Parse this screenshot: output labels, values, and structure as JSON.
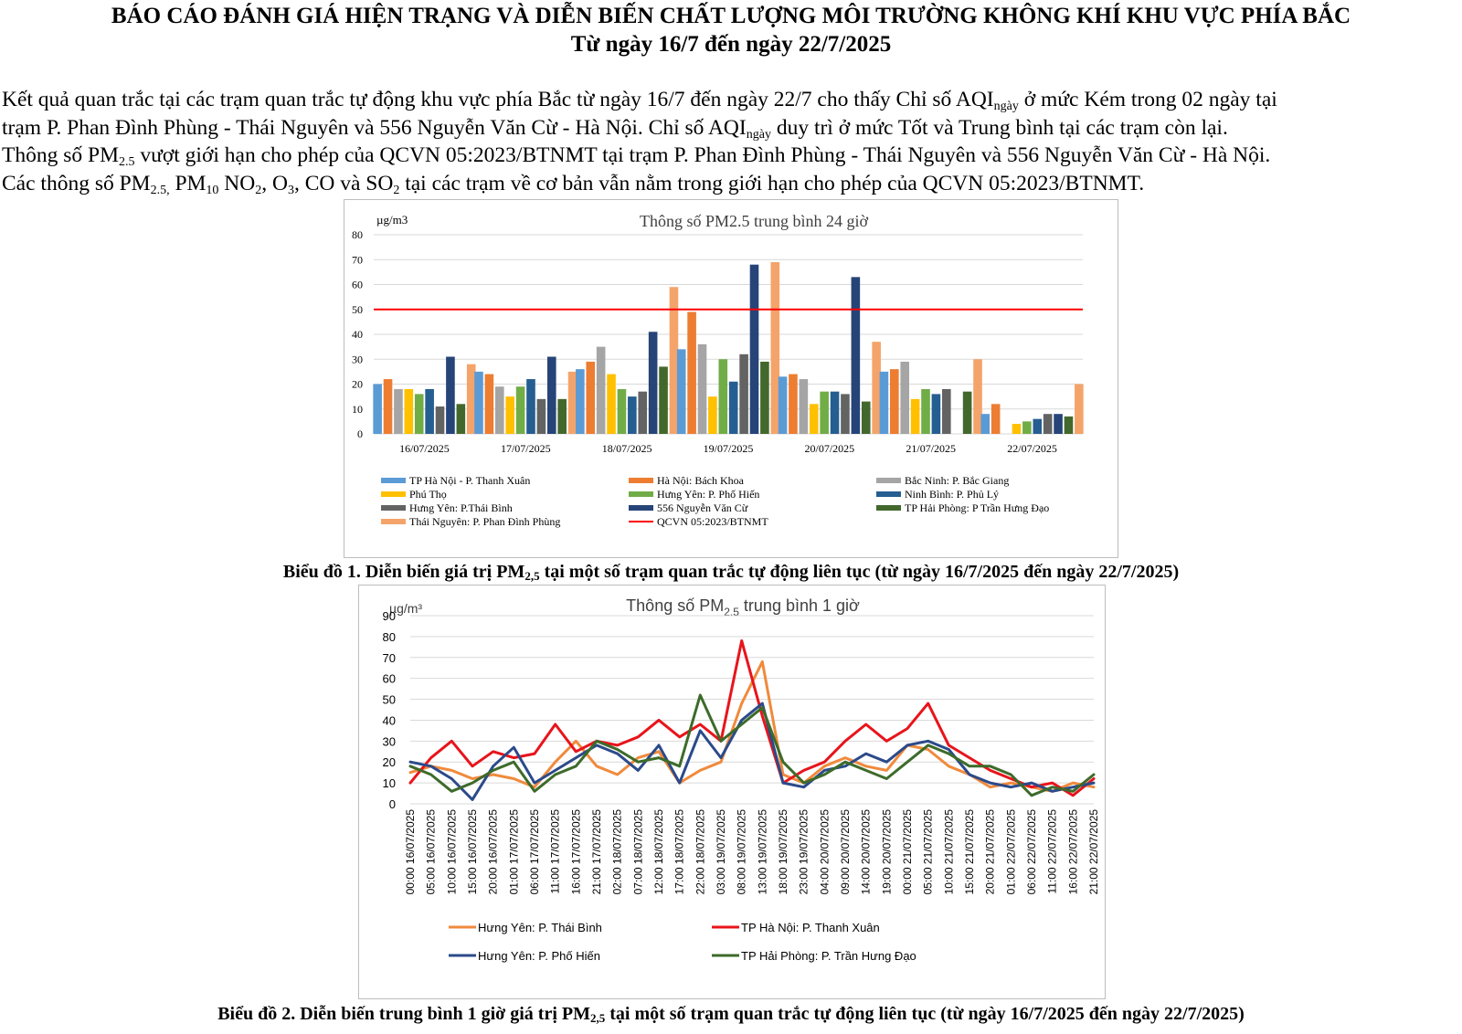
{
  "header": {
    "title": "BÁO CÁO ĐÁNH GIÁ HIỆN TRẠNG VÀ DIỄN BIẾN CHẤT LƯỢNG MÔI TRƯỜNG KHÔNG KHÍ KHU VỰC PHÍA BẮC",
    "subtitle": "Từ ngày 16/7 đến ngày 22/7/2025"
  },
  "summary": {
    "l1a": "Kết quả quan trắc tại các trạm quan trắc tự động khu vực phía Bắc từ ngày 16/7 đến ngày 22/7 cho thấy Chỉ số AQI",
    "l1sub": "ngày",
    "l1b": " ở mức Kém trong 02 ngày tại",
    "l2a": "trạm P. Phan Đình Phùng - Thái Nguyên và 556 Nguyễn Văn Cừ - Hà Nội. Chỉ số AQI",
    "l2sub": "ngày",
    "l2b": " duy trì ở mức Tốt và Trung bình tại các trạm còn lại.",
    "l3a": "Thông số PM",
    "l3sub": "2.5",
    "l3b": " vượt giới hạn cho phép của QCVN 05:2023/BTNMT tại trạm P. Phan Đình Phùng - Thái Nguyên và 556 Nguyễn Văn Cừ - Hà Nội.",
    "l4a": "Các thông số PM",
    "l4sub1": "2.5,",
    "l4b": " PM",
    "l4sub2": "10",
    "l4c": "  NO",
    "l4sub3": "2",
    "l4d": ", O",
    "l4sub4": "3",
    "l4e": ", CO và SO",
    "l4sub5": "2",
    "l4f": " tại các trạm về cơ bản vẫn nằm trong giới hạn cho phép của QCVN 05:2023/BTNMT."
  },
  "captions": {
    "fig1a": "Biểu đồ 1. Diễn biến giá trị PM",
    "fig1sub": "2,5",
    "fig1b": " tại một số trạm quan trắc tự động liên tục (từ ngày 16/7/2025 đến ngày 22/7/2025)",
    "fig2a": "Biểu đồ 2. Diễn biến trung bình 1 giờ giá trị PM",
    "fig2sub": "2,5",
    "fig2b": " tại một số trạm quan trắc tự động liên tục (từ ngày 16/7/2025 đến ngày 22/7/2025)"
  },
  "chart_data": [
    {
      "type": "bar",
      "title": "Thông số PM2.5 trung bình 24 giờ",
      "ylabel": "µg/m3",
      "ylim": [
        0,
        80
      ],
      "yticks": [
        0,
        10,
        20,
        30,
        40,
        50,
        60,
        70,
        80
      ],
      "grid": true,
      "legend_position": "bottom",
      "categories": [
        "16/07/2025",
        "17/07/2025",
        "18/07/2025",
        "19/07/2025",
        "20/07/2025",
        "21/07/2025",
        "22/07/2025"
      ],
      "series": [
        {
          "name": "TP Hà Nội - P. Thanh Xuân",
          "color": "#5b9bd5",
          "values": [
            20,
            25,
            26,
            34,
            23,
            25,
            8
          ]
        },
        {
          "name": "Hà Nội: Bách Khoa",
          "color": "#ed7d31",
          "values": [
            22,
            24,
            29,
            49,
            24,
            26,
            12
          ]
        },
        {
          "name": "Bắc Ninh: P. Bắc Giang",
          "color": "#a5a5a5",
          "values": [
            18,
            19,
            35,
            36,
            22,
            29,
            null
          ]
        },
        {
          "name": "Phú Thọ",
          "color": "#ffc000",
          "values": [
            18,
            15,
            24,
            15,
            12,
            14,
            4
          ]
        },
        {
          "name": "Hưng Yên: P. Phố Hiến",
          "color": "#70ad47",
          "values": [
            16,
            19,
            18,
            30,
            17,
            18,
            5
          ]
        },
        {
          "name": "Ninh Bình: P. Phủ Lý",
          "color": "#255e91",
          "values": [
            18,
            22,
            15,
            21,
            17,
            16,
            6
          ]
        },
        {
          "name": "Hưng Yên: P.Thái Bình",
          "color": "#636363",
          "values": [
            11,
            14,
            17,
            32,
            16,
            18,
            8
          ]
        },
        {
          "name": "556 Nguyễn Văn Cừ",
          "color": "#264478",
          "values": [
            31,
            31,
            41,
            68,
            63,
            null,
            8
          ]
        },
        {
          "name": "TP Hải Phòng: P Trần Hưng Đạo",
          "color": "#43682b",
          "values": [
            12,
            14,
            27,
            29,
            13,
            17,
            7
          ]
        },
        {
          "name": "Thái Nguyên: P. Phan Đình Phùng",
          "color": "#f4a46a",
          "values": [
            28,
            25,
            59,
            69,
            37,
            30,
            20
          ]
        }
      ],
      "reference_line": {
        "name": "QCVN 05:2023/BTNMT",
        "value": 50,
        "color": "#ff0000"
      }
    },
    {
      "type": "line",
      "title": "Thông số PM",
      "title_sub": "2.5",
      "title_tail": " trung bình 1 giờ",
      "ylabel": "µg/m³",
      "ylim": [
        0,
        90
      ],
      "yticks": [
        0,
        10,
        20,
        30,
        40,
        50,
        60,
        70,
        80,
        90
      ],
      "grid": true,
      "legend_position": "bottom",
      "x": [
        "00:00 16/07/2025",
        "05:00 16/07/2025",
        "10:00 16/07/2025",
        "15:00 16/07/2025",
        "20:00 16/07/2025",
        "01:00 17/07/2025",
        "06:00 17/07/2025",
        "11:00 17/07/2025",
        "16:00 17/07/2025",
        "21:00 17/07/2025",
        "02:00 18/07/2025",
        "07:00 18/07/2025",
        "12:00 18/07/2025",
        "17:00 18/07/2025",
        "22:00 18/07/2025",
        "03:00 19/07/2025",
        "08:00 19/07/2025",
        "13:00 19/07/2025",
        "18:00 19/07/2025",
        "23:00 19/07/2025",
        "04:00 20/07/2025",
        "09:00 20/07/2025",
        "14:00 20/07/2025",
        "19:00 20/07/2025",
        "00:00 21/07/2025",
        "05:00 21/07/2025",
        "10:00 21/07/2025",
        "15:00 21/07/2025",
        "20:00 21/07/2025",
        "01:00 22/07/2025",
        "06:00 22/07/2025",
        "11:00 22/07/2025",
        "16:00 22/07/2025",
        "21:00 22/07/2025"
      ],
      "series": [
        {
          "name": "Hưng Yên: P. Thái Bình",
          "color": "#f08a3c",
          "values": [
            15,
            18,
            16,
            12,
            14,
            12,
            8,
            20,
            30,
            18,
            14,
            22,
            25,
            10,
            16,
            20,
            48,
            68,
            14,
            10,
            18,
            22,
            18,
            16,
            28,
            26,
            18,
            14,
            8,
            10,
            8,
            6,
            10,
            8
          ]
        },
        {
          "name": "TP Hà Nội: P. Thanh Xuân",
          "color": "#e8141b",
          "values": [
            10,
            22,
            30,
            18,
            25,
            22,
            24,
            38,
            25,
            30,
            28,
            32,
            40,
            32,
            38,
            30,
            78,
            42,
            10,
            16,
            20,
            30,
            38,
            30,
            36,
            48,
            28,
            22,
            16,
            12,
            8,
            10,
            4,
            12
          ]
        },
        {
          "name": "Hưng Yên: P. Phố Hiến",
          "color": "#2b4a8a",
          "values": [
            20,
            18,
            12,
            2,
            18,
            27,
            10,
            16,
            22,
            28,
            24,
            16,
            28,
            10,
            35,
            22,
            40,
            48,
            10,
            8,
            16,
            18,
            24,
            20,
            28,
            30,
            26,
            14,
            10,
            8,
            10,
            6,
            8,
            10
          ]
        },
        {
          "name": "TP Hải Phòng: P. Trần Hưng Đạo",
          "color": "#3d6b2a",
          "values": [
            18,
            14,
            6,
            10,
            16,
            20,
            6,
            14,
            18,
            30,
            26,
            20,
            22,
            18,
            52,
            30,
            38,
            46,
            20,
            10,
            14,
            20,
            16,
            12,
            20,
            28,
            24,
            18,
            18,
            14,
            4,
            8,
            6,
            14
          ]
        }
      ]
    }
  ]
}
